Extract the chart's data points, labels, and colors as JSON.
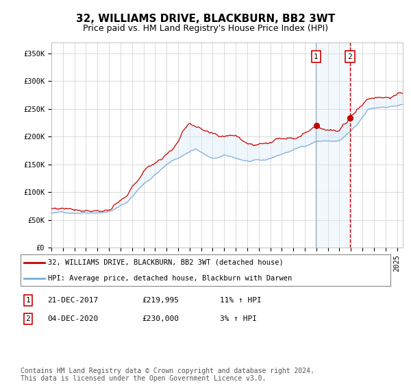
{
  "title": "32, WILLIAMS DRIVE, BLACKBURN, BB2 3WT",
  "subtitle": "Price paid vs. HM Land Registry's House Price Index (HPI)",
  "ylabel_ticks": [
    "£0",
    "£50K",
    "£100K",
    "£150K",
    "£200K",
    "£250K",
    "£300K",
    "£350K"
  ],
  "ytick_values": [
    0,
    50000,
    100000,
    150000,
    200000,
    250000,
    300000,
    350000
  ],
  "ylim": [
    0,
    370000
  ],
  "xlim_start": 1995.0,
  "xlim_end": 2025.5,
  "red_line_color": "#cc0000",
  "blue_line_color": "#7dadd4",
  "blue_fill_color": "#d8eaf8",
  "marker1_date": 2017.97,
  "marker2_date": 2020.92,
  "marker1_price": 219995,
  "marker2_price": 230000,
  "vline1_color": "#9ab5cc",
  "vline2_color": "#cc0000",
  "shade_color": "#daeaf8",
  "legend_red_label": "32, WILLIAMS DRIVE, BLACKBURN, BB2 3WT (detached house)",
  "legend_blue_label": "HPI: Average price, detached house, Blackburn with Darwen",
  "annotation1_label": "1",
  "annotation2_label": "2",
  "table_row1": [
    "1",
    "21-DEC-2017",
    "£219,995",
    "11% ↑ HPI"
  ],
  "table_row2": [
    "2",
    "04-DEC-2020",
    "£230,000",
    "3% ↑ HPI"
  ],
  "footnote": "Contains HM Land Registry data © Crown copyright and database right 2024.\nThis data is licensed under the Open Government Licence v3.0.",
  "grid_color": "#cccccc",
  "background_color": "#ffffff",
  "title_fontsize": 11,
  "subtitle_fontsize": 9,
  "tick_fontsize": 7.5
}
